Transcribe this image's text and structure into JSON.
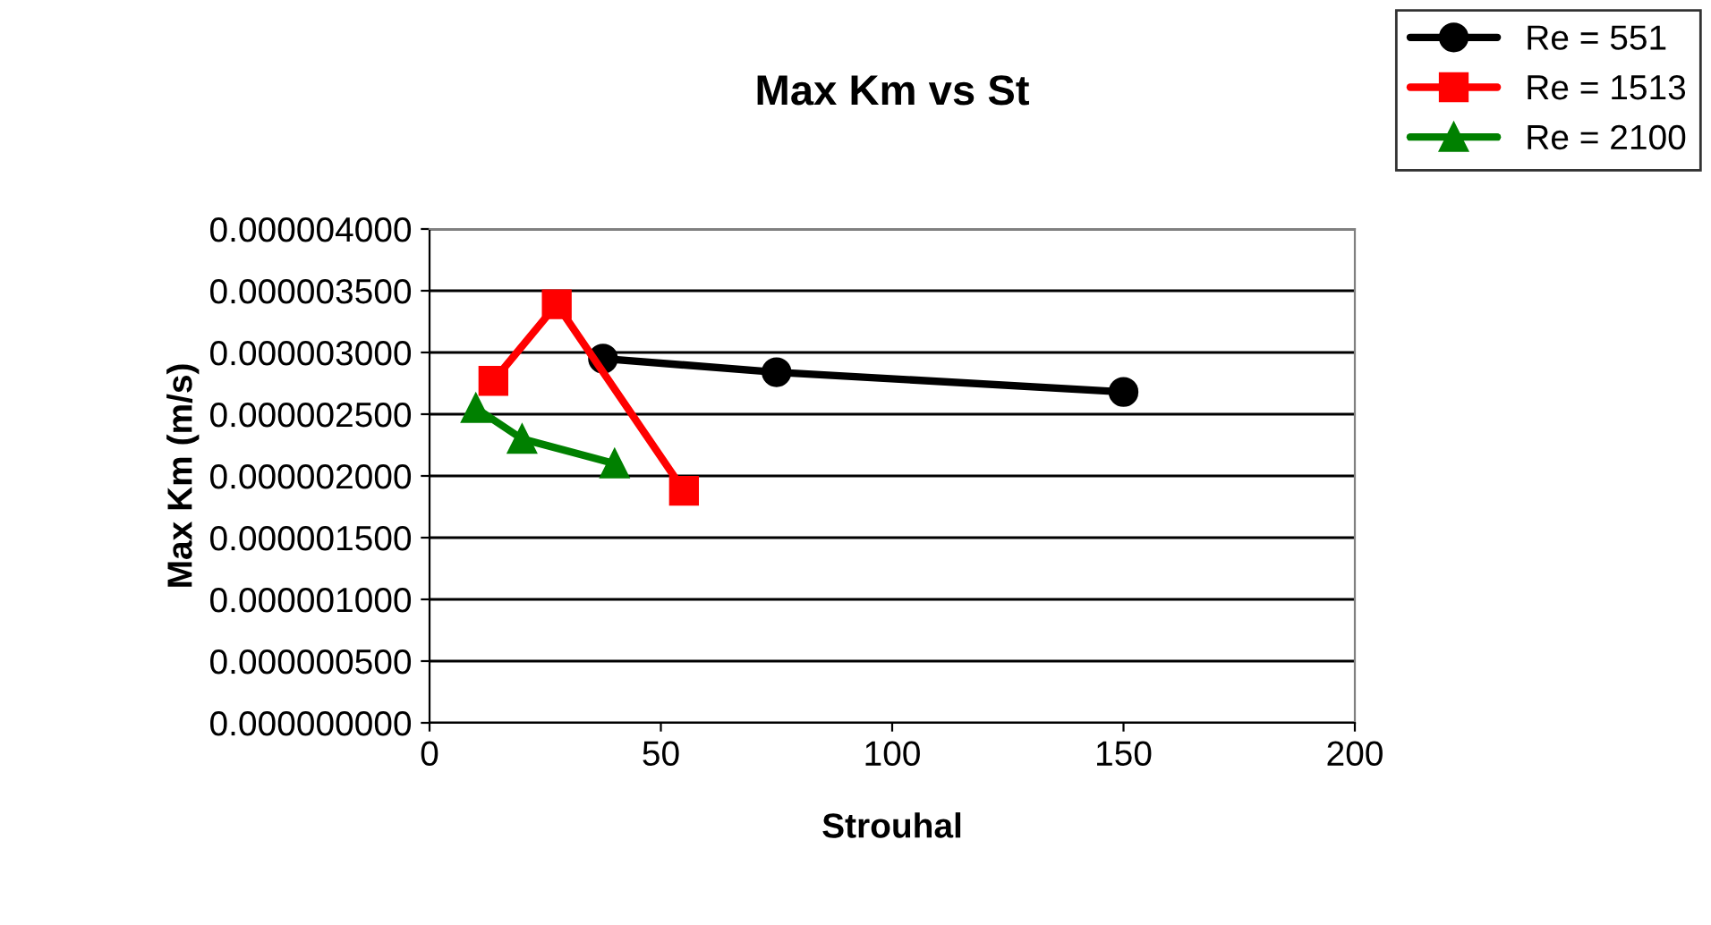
{
  "chart_data": {
    "type": "line",
    "title": "Max Km vs St",
    "xlabel": "Strouhal",
    "ylabel": "Max Km (m/s)",
    "series": [
      {
        "name": "Re = 551",
        "color": "#000000",
        "marker": "circle",
        "x": [
          37.5,
          75,
          150
        ],
        "values": [
          2.95e-06,
          2.84e-06,
          2.68e-06
        ]
      },
      {
        "name": "Re = 1513",
        "color": "#ff0000",
        "marker": "square",
        "x": [
          13.8,
          27.5,
          55
        ],
        "values": [
          2.77e-06,
          3.39e-06,
          1.88e-06
        ]
      },
      {
        "name": "Re = 2100",
        "color": "#008000",
        "marker": "triangle",
        "x": [
          10,
          20,
          40
        ],
        "values": [
          2.55e-06,
          2.3e-06,
          2.1e-06
        ]
      }
    ],
    "xlim": [
      0,
      200
    ],
    "xticks": [
      0,
      50,
      100,
      150,
      200
    ],
    "ylim": [
      0,
      4e-06
    ],
    "yticks": [
      {
        "value": 0,
        "label": "0.000000000"
      },
      {
        "value": 5e-07,
        "label": "0.000000500"
      },
      {
        "value": 1e-06,
        "label": "0.000001000"
      },
      {
        "value": 1.5e-06,
        "label": "0.000001500"
      },
      {
        "value": 2e-06,
        "label": "0.000002000"
      },
      {
        "value": 2.5e-06,
        "label": "0.000002500"
      },
      {
        "value": 3e-06,
        "label": "0.000003000"
      },
      {
        "value": 3.5e-06,
        "label": "0.000003500"
      },
      {
        "value": 4e-06,
        "label": "0.000004000"
      }
    ],
    "grid": "y",
    "legend": "top right",
    "line_style": "solid"
  }
}
